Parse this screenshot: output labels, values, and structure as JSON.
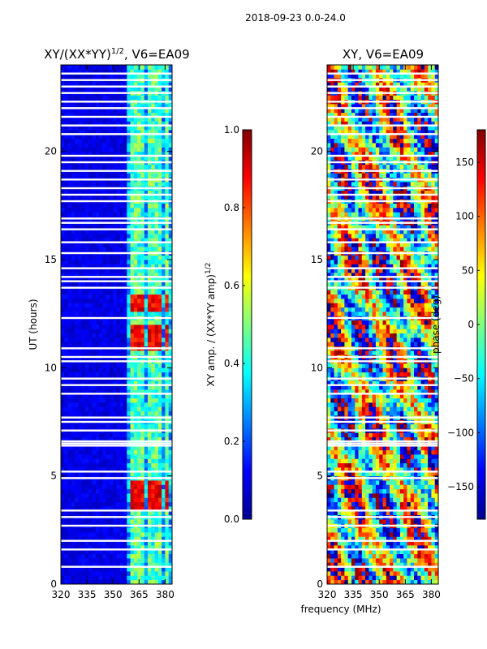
{
  "figure": {
    "suptitle": "2018-09-23 0.0-24.0",
    "xlabel_shared": "frequency (MHz)"
  },
  "chart_data": [
    {
      "type": "heatmap",
      "title": "XY/(XX*YY)^1/2, V6=EA09",
      "title_main": "XY/(XX*YY)",
      "title_sup": "1/2",
      "title_tail": ", V6=EA09",
      "ylabel": "UT (hours)",
      "xlabel": "",
      "xlim": [
        320,
        384
      ],
      "ylim": [
        0,
        24
      ],
      "x_ticks": [
        320,
        335,
        350,
        365,
        380
      ],
      "y_ticks": [
        0,
        5,
        10,
        15,
        20
      ],
      "colorbar": {
        "label_main": "XY amp. / (XX*YY amp)",
        "label_sup": "1/2",
        "range": [
          0.0,
          1.0
        ],
        "ticks": [
          "0.0",
          "0.2",
          "0.4",
          "0.6",
          "0.8",
          "1.0"
        ],
        "tick_values": [
          0.0,
          0.2,
          0.4,
          0.6,
          0.8,
          1.0
        ]
      },
      "description_data": {
        "low_band_mhz": [
          320,
          359
        ],
        "low_band_value": 0.1,
        "high_band_mhz": [
          359,
          384
        ],
        "high_band_value": 0.45,
        "hot_spots_hours": [
          [
            3.5,
            4.7
          ],
          [
            10.8,
            12.0
          ],
          [
            12.6,
            13.4
          ]
        ],
        "hot_value": 0.95
      }
    },
    {
      "type": "heatmap",
      "title": "XY, V6=EA09",
      "ylabel": "",
      "xlabel": "frequency (MHz)",
      "xlim": [
        320,
        384
      ],
      "ylim": [
        0,
        24
      ],
      "x_ticks": [
        320,
        335,
        350,
        365,
        380
      ],
      "y_ticks": [
        0,
        5,
        10,
        15,
        20
      ],
      "colorbar": {
        "label": "phase (deg)",
        "range": [
          -180,
          180
        ],
        "ticks": [
          "−150",
          "−100",
          "−50",
          "0",
          "50",
          "100",
          "150"
        ],
        "tick_values": [
          -150,
          -100,
          -50,
          0,
          50,
          100,
          150
        ]
      }
    }
  ],
  "flagged_hours": [
    0.8,
    1.6,
    2.0,
    2.7,
    3.1,
    3.4,
    4.9,
    5.2,
    6.4,
    6.5,
    6.6,
    7.1,
    7.5,
    7.7,
    8.8,
    9.2,
    9.5,
    10.3,
    10.5,
    10.9,
    12.3,
    13.7,
    14.0,
    14.2,
    14.6,
    15.3,
    15.8,
    16.4,
    16.7,
    16.9,
    17.7,
    18.0,
    18.3,
    18.7,
    19.1,
    19.5,
    19.8,
    20.8,
    21.2,
    21.6,
    22.0,
    22.3,
    22.7,
    23.0,
    23.3,
    23.6
  ]
}
